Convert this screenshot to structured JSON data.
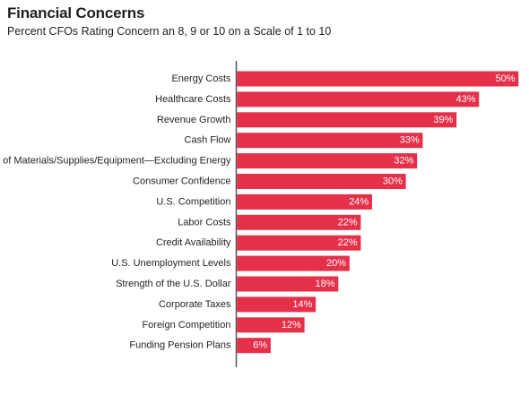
{
  "colors": {
    "bar": "#e5304a",
    "axis": "#555555"
  },
  "chart_data": {
    "type": "bar",
    "orientation": "horizontal",
    "title": "Financial Concerns",
    "subtitle": "Percent CFOs Rating Concern an 8, 9 or 10 on a Scale of 1 to 10",
    "categories": [
      "Energy Costs",
      "Healthcare Costs",
      "Revenue Growth",
      "Cash Flow",
      "Cost of Materials/Supplies/Equipment—Excluding Energy",
      "Consumer Confidence",
      "U.S. Competition",
      "Labor Costs",
      "Credit Availability",
      "U.S. Unemployment Levels",
      "Strength of the U.S. Dollar",
      "Corporate Taxes",
      "Foreign Competition",
      "Funding Pension Plans"
    ],
    "values": [
      50,
      43,
      39,
      33,
      32,
      30,
      24,
      22,
      22,
      20,
      18,
      14,
      12,
      6
    ],
    "data_labels": [
      "50%",
      "43%",
      "39%",
      "33%",
      "32%",
      "30%",
      "24%",
      "22%",
      "22%",
      "20%",
      "18%",
      "14%",
      "12%",
      "6%"
    ],
    "xlim": [
      0,
      50
    ],
    "grid": false,
    "legend": "none"
  }
}
